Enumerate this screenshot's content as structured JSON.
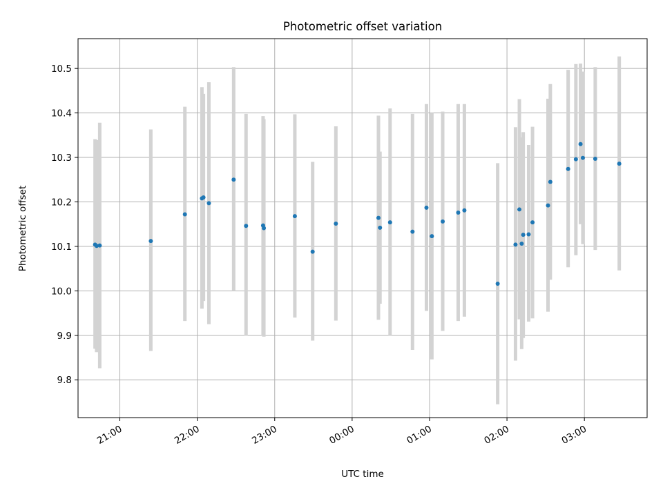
{
  "chart_data": {
    "type": "scatter",
    "title": "Photometric offset variation",
    "xlabel": "UTC time",
    "ylabel": "Photometric offset",
    "x_unit": "UTC clock time (hours after 20:00 of the first night; values past 24 are the following morning)",
    "xlim": [
      20.46,
      27.81
    ],
    "ylim": [
      9.715,
      10.567
    ],
    "x_ticks": [
      {
        "value": 21,
        "label": "21:00"
      },
      {
        "value": 22,
        "label": "22:00"
      },
      {
        "value": 23,
        "label": "23:00"
      },
      {
        "value": 24,
        "label": "00:00"
      },
      {
        "value": 25,
        "label": "01:00"
      },
      {
        "value": 26,
        "label": "02:00"
      },
      {
        "value": 27,
        "label": "03:00"
      }
    ],
    "y_ticks": [
      {
        "value": 9.8,
        "label": "9.8"
      },
      {
        "value": 9.9,
        "label": "9.9"
      },
      {
        "value": 10.0,
        "label": "10.0"
      },
      {
        "value": 10.1,
        "label": "10.1"
      },
      {
        "value": 10.2,
        "label": "10.2"
      },
      {
        "value": 10.3,
        "label": "10.3"
      },
      {
        "value": 10.4,
        "label": "10.4"
      },
      {
        "value": 10.5,
        "label": "10.5"
      }
    ],
    "grid": true,
    "colors": {
      "points": "#1f77b4",
      "error_bars": "#d3d3d3",
      "grid": "#b0b0b0"
    },
    "points": [
      {
        "x": 20.68,
        "y": 10.104,
        "ylow": 9.87,
        "yhigh": 10.341
      },
      {
        "x": 20.7,
        "y": 10.101,
        "ylow": 9.862,
        "yhigh": 10.339
      },
      {
        "x": 20.74,
        "y": 10.102,
        "ylow": 9.826,
        "yhigh": 10.378
      },
      {
        "x": 21.4,
        "y": 10.112,
        "ylow": 9.865,
        "yhigh": 10.363
      },
      {
        "x": 21.84,
        "y": 10.172,
        "ylow": 9.932,
        "yhigh": 10.414
      },
      {
        "x": 22.06,
        "y": 10.208,
        "ylow": 9.96,
        "yhigh": 10.458
      },
      {
        "x": 22.08,
        "y": 10.21,
        "ylow": 9.977,
        "yhigh": 10.443
      },
      {
        "x": 22.15,
        "y": 10.197,
        "ylow": 9.925,
        "yhigh": 10.469
      },
      {
        "x": 22.47,
        "y": 10.25,
        "ylow": 10.0,
        "yhigh": 10.503
      },
      {
        "x": 22.63,
        "y": 10.146,
        "ylow": 9.899,
        "yhigh": 10.398
      },
      {
        "x": 22.85,
        "y": 10.147,
        "ylow": 9.9,
        "yhigh": 10.393
      },
      {
        "x": 22.86,
        "y": 10.141,
        "ylow": 9.897,
        "yhigh": 10.386
      },
      {
        "x": 23.26,
        "y": 10.168,
        "ylow": 9.94,
        "yhigh": 10.397
      },
      {
        "x": 23.49,
        "y": 10.088,
        "ylow": 9.888,
        "yhigh": 10.29
      },
      {
        "x": 23.79,
        "y": 10.151,
        "ylow": 9.933,
        "yhigh": 10.37
      },
      {
        "x": 24.34,
        "y": 10.164,
        "ylow": 9.935,
        "yhigh": 10.394
      },
      {
        "x": 24.36,
        "y": 10.142,
        "ylow": 9.971,
        "yhigh": 10.313
      },
      {
        "x": 24.49,
        "y": 10.154,
        "ylow": 9.9,
        "yhigh": 10.41
      },
      {
        "x": 24.78,
        "y": 10.133,
        "ylow": 9.867,
        "yhigh": 10.398
      },
      {
        "x": 24.96,
        "y": 10.187,
        "ylow": 9.955,
        "yhigh": 10.42
      },
      {
        "x": 25.03,
        "y": 10.123,
        "ylow": 9.846,
        "yhigh": 10.4
      },
      {
        "x": 25.17,
        "y": 10.156,
        "ylow": 9.91,
        "yhigh": 10.403
      },
      {
        "x": 25.37,
        "y": 10.176,
        "ylow": 9.932,
        "yhigh": 10.42
      },
      {
        "x": 25.45,
        "y": 10.181,
        "ylow": 9.942,
        "yhigh": 10.42
      },
      {
        "x": 25.88,
        "y": 10.016,
        "ylow": 9.745,
        "yhigh": 10.287
      },
      {
        "x": 26.11,
        "y": 10.104,
        "ylow": 9.843,
        "yhigh": 10.368
      },
      {
        "x": 26.16,
        "y": 10.183,
        "ylow": 9.936,
        "yhigh": 10.431
      },
      {
        "x": 26.19,
        "y": 10.106,
        "ylow": 9.869,
        "yhigh": 10.345
      },
      {
        "x": 26.21,
        "y": 10.126,
        "ylow": 9.894,
        "yhigh": 10.357
      },
      {
        "x": 26.28,
        "y": 10.127,
        "ylow": 9.931,
        "yhigh": 10.328
      },
      {
        "x": 26.33,
        "y": 10.154,
        "ylow": 9.938,
        "yhigh": 10.369
      },
      {
        "x": 26.53,
        "y": 10.192,
        "ylow": 9.953,
        "yhigh": 10.432
      },
      {
        "x": 26.56,
        "y": 10.245,
        "ylow": 10.025,
        "yhigh": 10.465
      },
      {
        "x": 26.79,
        "y": 10.274,
        "ylow": 10.053,
        "yhigh": 10.497
      },
      {
        "x": 26.89,
        "y": 10.296,
        "ylow": 10.08,
        "yhigh": 10.51
      },
      {
        "x": 26.95,
        "y": 10.33,
        "ylow": 10.15,
        "yhigh": 10.511
      },
      {
        "x": 26.98,
        "y": 10.299,
        "ylow": 10.105,
        "yhigh": 10.493
      },
      {
        "x": 27.14,
        "y": 10.297,
        "ylow": 10.092,
        "yhigh": 10.503
      },
      {
        "x": 27.45,
        "y": 10.286,
        "ylow": 10.046,
        "yhigh": 10.527
      }
    ]
  }
}
